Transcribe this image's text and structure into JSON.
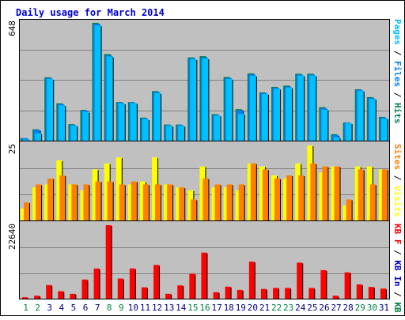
{
  "colors": {
    "background": "#ffffff",
    "frame": "#000000",
    "panel": "#c0c0c0",
    "grid": "#808080",
    "title": "#0000cc",
    "day_weekday": "#000080",
    "day_weekend": "#008040",
    "hits": "#00805c",
    "files": "#0080ff",
    "pages": "#00c0ff",
    "visits": "#ffff00",
    "sites": "#ff8000",
    "kb_in": "#0000cc",
    "kb_out": "#008040",
    "kb_f": "#ff0000"
  },
  "chart_data": {
    "type": "bar",
    "title": "Daily usage for March 2014",
    "categories": [
      "1",
      "2",
      "3",
      "4",
      "5",
      "6",
      "7",
      "8",
      "9",
      "10",
      "11",
      "12",
      "13",
      "14",
      "15",
      "16",
      "17",
      "18",
      "19",
      "20",
      "21",
      "22",
      "23",
      "24",
      "25",
      "26",
      "27",
      "28",
      "29",
      "30",
      "31"
    ],
    "weekend_days": [
      "1",
      "2",
      "8",
      "9",
      "15",
      "16",
      "22",
      "23",
      "29",
      "30"
    ],
    "panels": [
      {
        "name": "hits-files-pages",
        "ymax_label": "648",
        "ylim": [
          0,
          648
        ],
        "right_label": [
          {
            "text": "Pages",
            "color": "#00c0ff"
          },
          {
            "text": " / ",
            "color": "#000000"
          },
          {
            "text": "Files",
            "color": "#0080ff"
          },
          {
            "text": " / ",
            "color": "#000000"
          },
          {
            "text": "Hits",
            "color": "#00805c"
          }
        ],
        "series": [
          {
            "name": "Hits",
            "color": "#00805c",
            "values": [
              14,
              62,
              346,
              204,
              90,
              168,
              644,
              473,
              211,
              211,
              126,
              271,
              88,
              88,
              455,
              462,
              145,
              348,
              172,
              368,
              264,
              294,
              301,
              366,
              366,
              183,
              35,
              99,
              281,
              238,
              130
            ]
          },
          {
            "name": "Files",
            "color": "#0080ff",
            "values": [
              12,
              58,
              342,
              198,
              86,
              164,
              638,
              466,
              208,
              208,
              122,
              266,
              85,
              85,
              450,
              455,
              141,
              343,
              165,
              362,
              260,
              288,
              295,
              361,
              361,
              177,
              30,
              98,
              277,
              233,
              126
            ]
          },
          {
            "name": "Pages",
            "color": "#00c0ff",
            "values": [
              6,
              40,
              337,
              193,
              82,
              157,
              630,
              460,
              203,
              205,
              117,
              260,
              81,
              81,
              445,
              450,
              137,
              337,
              146,
              355,
              255,
              283,
              290,
              356,
              356,
              170,
              18,
              95,
              273,
              228,
              121
            ]
          }
        ]
      },
      {
        "name": "visits-sites",
        "ymax_label": "25",
        "ylim": [
          0,
          25
        ],
        "right_label": [
          {
            "text": "Sites",
            "color": "#ff8000"
          },
          {
            "text": " / ",
            "color": "#000000"
          },
          {
            "text": "Visits",
            "color": "#ffff00"
          }
        ],
        "series": [
          {
            "name": "Visits",
            "color": "#ffff00",
            "values": [
              4,
              11,
              12,
              20,
              12,
              10,
              17,
              19,
              21,
              12,
              13,
              21,
              12,
              11,
              10,
              18,
              11,
              11,
              10,
              19,
              18,
              15,
              14,
              19,
              25,
              16,
              18,
              5,
              18,
              18,
              17
            ]
          },
          {
            "name": "Sites",
            "color": "#ff8000",
            "values": [
              6,
              12,
              14,
              15,
              12,
              12,
              13,
              13,
              12,
              13,
              12,
              12,
              12,
              11,
              7,
              14,
              12,
              12,
              12,
              19,
              17,
              14,
              15,
              15,
              19,
              18,
              18,
              7,
              17,
              12,
              17
            ]
          }
        ]
      },
      {
        "name": "kbytes",
        "ymax_label": "22640",
        "ylim": [
          0,
          22640
        ],
        "right_label": [
          {
            "text": "KB F",
            "color": "#ff0000"
          },
          {
            "text": " / ",
            "color": "#000000"
          },
          {
            "text": "KB In",
            "color": "#0000cc"
          },
          {
            "text": " / ",
            "color": "#000000"
          },
          {
            "text": "KB Out",
            "color": "#008040"
          }
        ],
        "series": [
          {
            "name": "KB F",
            "color": "#ff0000",
            "values": [
              450,
              900,
              4200,
              2300,
              1500,
              5900,
              9300,
              22640,
              6200,
              9300,
              3500,
              10400,
              1500,
              4100,
              7700,
              14200,
              2000,
              3700,
              2700,
              11400,
              3000,
              3300,
              3300,
              11100,
              3300,
              8800,
              900,
              8100,
              4400,
              3600,
              3100
            ]
          }
        ]
      }
    ]
  }
}
